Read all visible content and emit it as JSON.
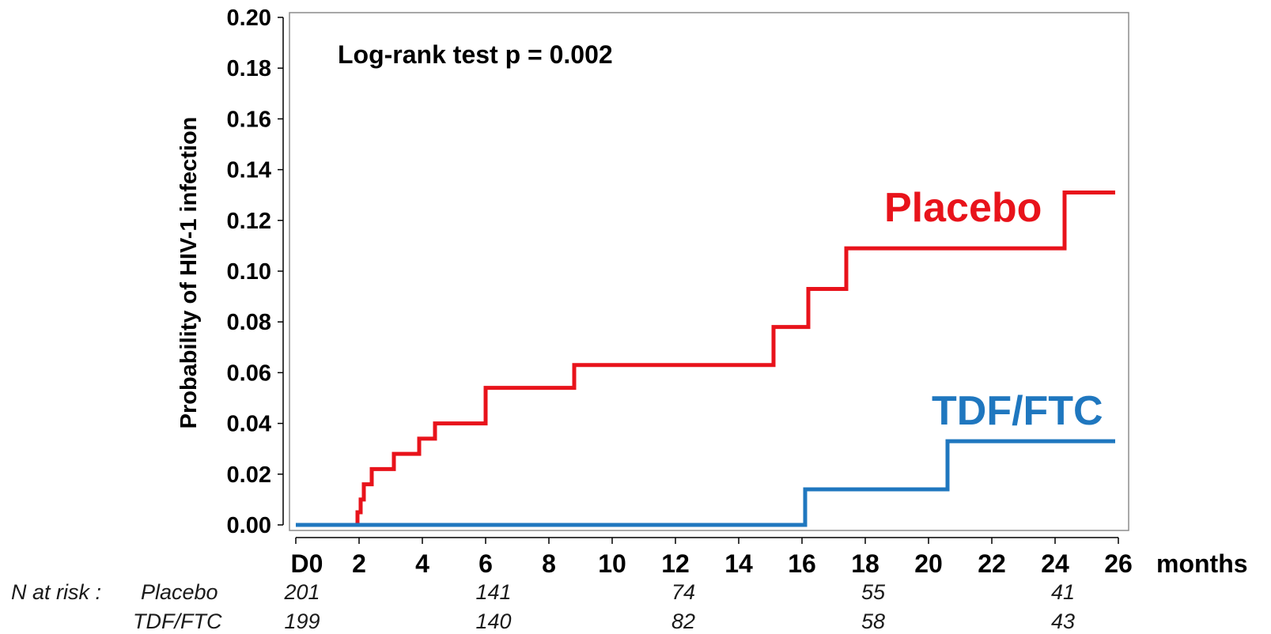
{
  "chart_data": {
    "type": "line",
    "step": true,
    "annotation": "Log-rank test  p = 0.002",
    "ylabel": "Probability of HIV-1  infection",
    "xlabel": "months",
    "xlim": [
      0,
      26
    ],
    "ylim": [
      0,
      0.2
    ],
    "x_ticks": [
      0,
      2,
      4,
      6,
      8,
      10,
      12,
      14,
      16,
      18,
      20,
      22,
      24,
      26
    ],
    "x_tick_labels": [
      "D0",
      "2",
      "4",
      "6",
      "8",
      "10",
      "12",
      "14",
      "16",
      "18",
      "20",
      "22",
      "24",
      "26"
    ],
    "y_ticks": [
      0,
      0.02,
      0.04,
      0.06,
      0.08,
      0.1,
      0.12,
      0.14,
      0.16,
      0.18,
      0.2
    ],
    "y_tick_labels": [
      "0.00",
      "0.02",
      "0.04",
      "0.06",
      "0.08",
      "0.10",
      "0.12",
      "0.14",
      "0.16",
      "0.18",
      "0.20"
    ],
    "grid": false,
    "series": [
      {
        "name": "Placebo",
        "color": "#e8131b",
        "x": [
          0,
          1.95,
          2.05,
          2.15,
          2.4,
          3.1,
          3.9,
          4.4,
          6.0,
          8.8,
          15.1,
          16.2,
          17.4,
          24.3,
          25.9
        ],
        "y": [
          0,
          0.005,
          0.01,
          0.016,
          0.022,
          0.028,
          0.034,
          0.04,
          0.054,
          0.063,
          0.078,
          0.093,
          0.109,
          0.131,
          0.131
        ]
      },
      {
        "name": "TDF/FTC",
        "color": "#1f77bf",
        "x": [
          0,
          16.1,
          20.6,
          25.9
        ],
        "y": [
          0,
          0.014,
          0.033,
          0.033
        ]
      }
    ],
    "at_risk": {
      "title": "N at risk :",
      "x": [
        0,
        6,
        12,
        18,
        24
      ],
      "rows": [
        {
          "name": "Placebo",
          "values": [
            "201",
            "141",
            "74",
            "55",
            "41"
          ]
        },
        {
          "name": "TDF/FTC",
          "values": [
            "199",
            "140",
            "82",
            "58",
            "43"
          ]
        }
      ]
    }
  }
}
